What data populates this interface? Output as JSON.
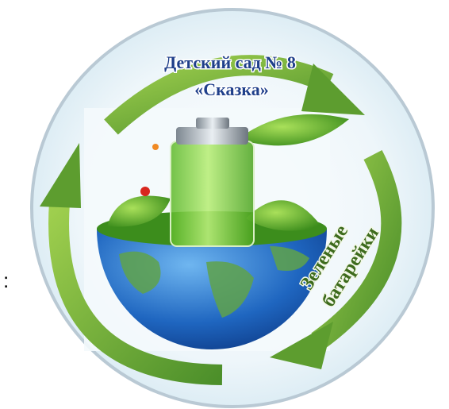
{
  "logo": {
    "title_line1": "Детский сад № 8",
    "title_line2": "«Сказка»",
    "caption_line1": "Зеленые",
    "caption_line2": "батарейки"
  },
  "side_mark": ":"
}
